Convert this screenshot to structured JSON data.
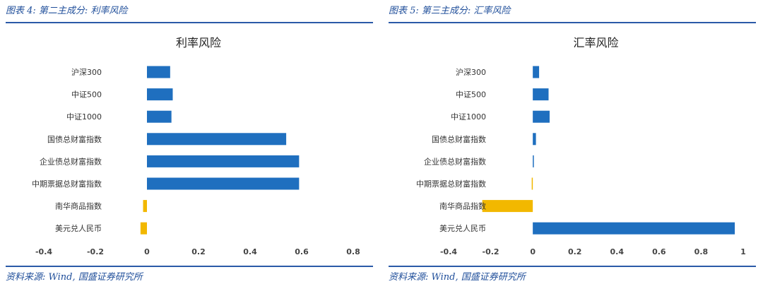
{
  "panels": [
    {
      "header": "图表 4:  第二主成分:  利率风险",
      "source": "资料来源:  Wind,  国盛证券研究所"
    },
    {
      "header": "图表 5:  第三主成分:  汇率风险",
      "source": "资料来源:  Wind,  国盛证券研究所"
    }
  ],
  "colors": {
    "positive": "#1f6fbf",
    "negative": "#f2b800",
    "rule": "#2b5aa8",
    "header": "#1f4e9a"
  },
  "chart_data": [
    {
      "type": "bar",
      "orientation": "horizontal",
      "title": "利率风险",
      "categories": [
        "沪深300",
        "中证500",
        "中证1000",
        "国债总财富指数",
        "企业债总财富指数",
        "中期票据总财富指数",
        "南华商品指数",
        "美元兑人民币"
      ],
      "values": [
        0.09,
        0.1,
        0.095,
        0.54,
        0.59,
        0.59,
        -0.015,
        -0.025
      ],
      "xlim": [
        -0.4,
        0.8
      ],
      "xticks": [
        -0.4,
        -0.2,
        0,
        0.2,
        0.4,
        0.6,
        0.8
      ],
      "tick_labels": [
        "-0.4",
        "-0.2",
        "0",
        "0.2",
        "0.4",
        "0.6",
        "0.8"
      ],
      "grid": false,
      "legend": "none"
    },
    {
      "type": "bar",
      "orientation": "horizontal",
      "title": "汇率风险",
      "categories": [
        "沪深300",
        "中证500",
        "中证1000",
        "国债总财富指数",
        "企业债总财富指数",
        "中期票据总财富指数",
        "南华商品指数",
        "美元兑人民币"
      ],
      "values": [
        0.03,
        0.075,
        0.08,
        0.015,
        0.005,
        -0.005,
        -0.24,
        0.96
      ],
      "xlim": [
        -0.4,
        1
      ],
      "xticks": [
        -0.4,
        -0.2,
        0,
        0.2,
        0.4,
        0.6,
        0.8,
        1
      ],
      "tick_labels": [
        "-0.4",
        "-0.2",
        "0",
        "0.2",
        "0.4",
        "0.6",
        "0.8",
        "1"
      ],
      "grid": false,
      "legend": "none"
    }
  ]
}
